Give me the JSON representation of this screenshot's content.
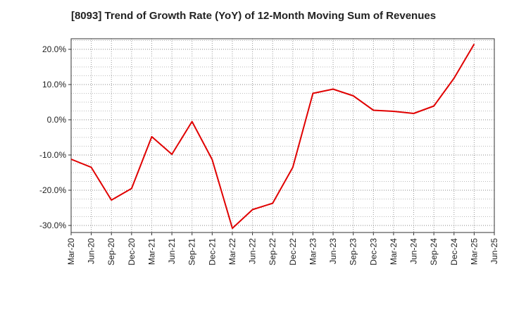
{
  "chart_data": {
    "type": "line",
    "title": "[8093]  Trend of Growth Rate (YoY) of 12-Month Moving Sum of Revenues",
    "xlabel": "",
    "ylabel": "",
    "y_unit": "%",
    "ylim": [
      -32,
      23
    ],
    "y_ticks": [
      20,
      10,
      0,
      -10,
      -20,
      -30
    ],
    "y_tick_labels": [
      "20.0%",
      "10.0%",
      "0.0%",
      "-10.0%",
      "-20.0%",
      "-30.0%"
    ],
    "x_tick_labels": [
      "Mar-20",
      "Jun-20",
      "Sep-20",
      "Dec-20",
      "Mar-21",
      "Jun-21",
      "Sep-21",
      "Dec-21",
      "Mar-22",
      "Jun-22",
      "Sep-22",
      "Dec-22",
      "Mar-23",
      "Jun-23",
      "Sep-23",
      "Dec-23",
      "Mar-24",
      "Jun-24",
      "Sep-24",
      "Dec-24",
      "Mar-25",
      "Jun-25"
    ],
    "grid": true,
    "grid_style": "dotted",
    "line_color": "#e00000",
    "series": [
      {
        "name": "",
        "values": [
          -11.2,
          -13.5,
          -22.8,
          -19.5,
          -4.8,
          -9.8,
          -0.5,
          -11.3,
          -30.8,
          -25.5,
          -23.7,
          -13.5,
          7.5,
          8.7,
          6.8,
          2.7,
          2.4,
          1.8,
          3.9,
          11.8,
          21.5
        ]
      }
    ]
  }
}
